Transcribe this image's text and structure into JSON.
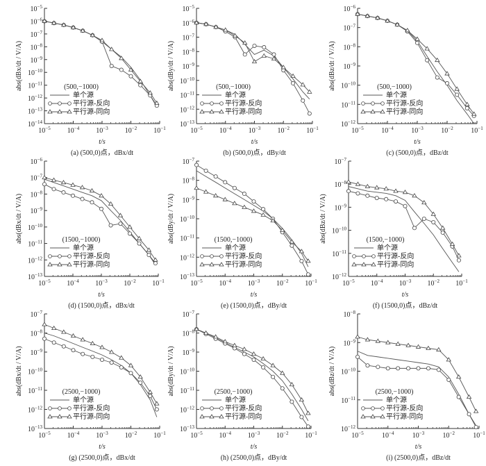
{
  "chart_data": {
    "type": "line",
    "x_log10": [
      -5,
      -4.67,
      -4.33,
      -4,
      -3.67,
      -3.33,
      -3,
      -2.67,
      -2.33,
      -2,
      -1.67,
      -1.33,
      -1.1
    ],
    "xlabel": "t/s",
    "xlim": [
      1e-05,
      0.1
    ],
    "xticks": [
      "10^-5",
      "10^-4",
      "10^-3",
      "10^-2",
      "10^-1"
    ],
    "series_names": [
      "单个源",
      "平行源-反向",
      "平行源-同向"
    ],
    "y_scale": "log",
    "panels": [
      {
        "id": "a",
        "caption": "(a) (500,0)点，dBx/dt",
        "ylabel": "abs(dBx/dt / V/A)",
        "legend_title": "(500,−1000)",
        "ylim_log10": [
          -14,
          -5
        ],
        "series": [
          {
            "name": "单个源",
            "marker": "none",
            "y_log10": [
              -6,
              -6.15,
              -6.3,
              -6.5,
              -6.75,
              -7.1,
              -7.6,
              -8.2,
              -8.8,
              -9.6,
              -10.6,
              -11.8,
              -12.7
            ]
          },
          {
            "name": "平行源-反向",
            "marker": "circle",
            "y_log10": [
              -6,
              -6.15,
              -6.3,
              -6.5,
              -6.75,
              -7.1,
              -7.6,
              -9.5,
              -9.8,
              -10.3,
              -11,
              -11.8,
              -12.6
            ]
          },
          {
            "name": "平行源-同向",
            "marker": "triangle",
            "y_log10": [
              -6,
              -6.15,
              -6.3,
              -6.5,
              -6.75,
              -7.1,
              -7.5,
              -8.2,
              -8.9,
              -9.8,
              -10.7,
              -11.6,
              -12.4
            ]
          }
        ]
      },
      {
        "id": "b",
        "caption": "(b) (500,0)点，dBy/dt",
        "ylabel": "abs(dBy/dt / V/A)",
        "legend_title": "(500,−1000)",
        "ylim_log10": [
          -13,
          -5
        ],
        "series": [
          {
            "name": "单个源",
            "marker": "none",
            "y_log10": [
              -6,
              -6.1,
              -6.3,
              -6.5,
              -6.8,
              -7.5,
              -8.2,
              -7.9,
              -8.3,
              -9.1,
              -9.9,
              -10.8,
              -11.3
            ]
          },
          {
            "name": "平行源-反向",
            "marker": "circle",
            "y_log10": [
              -6,
              -6.1,
              -6.3,
              -6.6,
              -7,
              -8.2,
              -7.6,
              -7.7,
              -8.2,
              -9.3,
              -10.2,
              -11.4,
              -12.3
            ]
          },
          {
            "name": "平行源-同向",
            "marker": "triangle",
            "y_log10": [
              -6,
              -6.1,
              -6.3,
              -6.5,
              -6.9,
              -7.4,
              -8.7,
              -8.3,
              -8.5,
              -9.1,
              -9.7,
              -10.3,
              -10.8
            ]
          }
        ]
      },
      {
        "id": "c",
        "caption": "(c) (500,0)点，dBz/dt",
        "ylabel": "abs(dBz/dt / V/A)",
        "legend_title": "(500,−1000)",
        "ylim_log10": [
          -12,
          -6
        ],
        "series": [
          {
            "name": "单个源",
            "marker": "none",
            "y_log10": [
              -6.3,
              -6.4,
              -6.5,
              -6.65,
              -6.85,
              -7.15,
              -7.7,
              -8.5,
              -9.3,
              -10,
              -10.8,
              -11.5,
              -12
            ]
          },
          {
            "name": "平行源-反向",
            "marker": "circle",
            "y_log10": [
              -6.3,
              -6.4,
              -6.5,
              -6.65,
              -6.85,
              -7.2,
              -7.8,
              -8.7,
              -9.6,
              -9.9,
              -10.5,
              -11.2,
              -11.6
            ]
          },
          {
            "name": "平行源-同向",
            "marker": "triangle",
            "y_log10": [
              -6.3,
              -6.4,
              -6.5,
              -6.65,
              -6.85,
              -7.15,
              -7.6,
              -8.1,
              -8.7,
              -9.4,
              -10.2,
              -11,
              -11.5
            ]
          }
        ]
      },
      {
        "id": "d",
        "caption": "(d) (1500,0)点，dBx/dt",
        "ylabel": "abs(dBx/dt / V/A)",
        "legend_title": "(1500,−1000)",
        "ylim_log10": [
          -13,
          -6
        ],
        "series": [
          {
            "name": "单个源",
            "marker": "none",
            "y_log10": [
              -7.1,
              -7.3,
              -7.5,
              -7.7,
              -7.9,
              -8.1,
              -8.4,
              -9,
              -9.6,
              -10.3,
              -11,
              -11.7,
              -12.3
            ]
          },
          {
            "name": "平行源-反向",
            "marker": "circle",
            "y_log10": [
              -7.4,
              -7.7,
              -7.9,
              -8.1,
              -8.3,
              -8.5,
              -8.9,
              -9.9,
              -9.8,
              -10.4,
              -11,
              -11.7,
              -12.2
            ]
          },
          {
            "name": "平行源-同向",
            "marker": "triangle",
            "y_log10": [
              -7,
              -7.15,
              -7.3,
              -7.45,
              -7.6,
              -7.8,
              -8.1,
              -8.6,
              -9.3,
              -10,
              -10.7,
              -11.4,
              -12
            ]
          }
        ]
      },
      {
        "id": "e",
        "caption": "(e) (1500,0)点，dBy/dt",
        "ylabel": "abs(dBy/dt / V/A)",
        "legend_title": "(1500,−1000)",
        "ylim_log10": [
          -13,
          -7
        ],
        "series": [
          {
            "name": "单个源",
            "marker": "none",
            "y_log10": [
              -7.5,
              -7.8,
              -8.1,
              -8.4,
              -8.7,
              -9,
              -9.3,
              -9.6,
              -10,
              -10.5,
              -11.1,
              -11.8,
              -12.5
            ]
          },
          {
            "name": "平行源-反向",
            "marker": "circle",
            "y_log10": [
              -7.2,
              -7.5,
              -7.8,
              -8.1,
              -8.4,
              -8.7,
              -9.1,
              -9.5,
              -10,
              -10.7,
              -11.4,
              -12.2,
              -12.9
            ]
          },
          {
            "name": "平行源-同向",
            "marker": "triangle",
            "y_log10": [
              -8.4,
              -8.6,
              -8.8,
              -9,
              -9.2,
              -9.4,
              -9.6,
              -9.8,
              -10.1,
              -10.6,
              -11.2,
              -11.7,
              -12.2
            ]
          }
        ]
      },
      {
        "id": "f",
        "caption": "(f) (1500,0)点，dBz/dt",
        "ylabel": "abs(dBz/dt / V/A)",
        "legend_title": "(1500,−1000)",
        "ylim_log10": [
          -12,
          -7
        ],
        "series": [
          {
            "name": "单个源",
            "marker": "none",
            "y_log10": [
              -8.1,
              -8.2,
              -8.3,
              -8.35,
              -8.4,
              -8.5,
              -8.7,
              -9.2,
              -9.7,
              -10.2,
              -10.8,
              -11.4,
              -11.8
            ]
          },
          {
            "name": "平行源-反向",
            "marker": "circle",
            "y_log10": [
              -8.3,
              -8.4,
              -8.5,
              -8.6,
              -8.65,
              -8.75,
              -8.95,
              -9.9,
              -9.5,
              -9.65,
              -10.1,
              -10.7,
              -11.3
            ]
          },
          {
            "name": "平行源-同向",
            "marker": "triangle",
            "y_log10": [
              -7.9,
              -8,
              -8.1,
              -8.15,
              -8.2,
              -8.3,
              -8.35,
              -8.5,
              -8.8,
              -9.3,
              -9.9,
              -10.6,
              -11.1
            ]
          }
        ]
      },
      {
        "id": "g",
        "caption": "(g) (2500,0)点，dBx/dt",
        "ylabel": "abs(dBx/dt / V/A)",
        "legend_title": "(2500,−1000)",
        "ylim_log10": [
          -13,
          -7
        ],
        "series": [
          {
            "name": "单个源",
            "marker": "none",
            "y_log10": [
              -8,
              -8.15,
              -8.35,
              -8.55,
              -8.75,
              -8.95,
              -9.15,
              -9.4,
              -9.7,
              -10.1,
              -10.7,
              -11.5,
              -12.4
            ]
          },
          {
            "name": "平行源-反向",
            "marker": "circle",
            "y_log10": [
              -8.3,
              -8.5,
              -8.7,
              -8.9,
              -9.1,
              -9.25,
              -9.4,
              -9.55,
              -9.8,
              -10.1,
              -10.6,
              -11.3,
              -12
            ]
          },
          {
            "name": "平行源-同向",
            "marker": "triangle",
            "y_log10": [
              -7.55,
              -7.75,
              -7.95,
              -8.15,
              -8.35,
              -8.55,
              -8.75,
              -9,
              -9.3,
              -9.7,
              -10.3,
              -11.1,
              -11.7
            ]
          }
        ]
      },
      {
        "id": "h",
        "caption": "(h) (2500,0)点，dBy/dt",
        "ylabel": "abs(dBy/dt / V/A)",
        "legend_title": "(2500,−1000)",
        "ylim_log10": [
          -13,
          -7
        ],
        "series": [
          {
            "name": "单个源",
            "marker": "none",
            "y_log10": [
              -7.8,
              -8,
              -8.25,
              -8.5,
              -8.75,
              -9,
              -9.25,
              -9.6,
              -10,
              -10.5,
              -11.2,
              -12,
              -12.6
            ]
          },
          {
            "name": "平行源-反向",
            "marker": "circle",
            "y_log10": [
              -7.8,
              -8.05,
              -8.3,
              -8.55,
              -8.8,
              -9.1,
              -9.4,
              -9.8,
              -10.3,
              -10.9,
              -11.6,
              -12.4,
              -12.9
            ]
          },
          {
            "name": "平行源-同向",
            "marker": "triangle",
            "y_log10": [
              -7.8,
              -8,
              -8.2,
              -8.45,
              -8.65,
              -8.85,
              -9.1,
              -9.35,
              -9.7,
              -10.1,
              -10.7,
              -11.5,
              -12.2
            ]
          }
        ]
      },
      {
        "id": "i",
        "caption": "(i) (2500,0)点，dBz/dt",
        "ylabel": "abs(dBz/dt / V/A)",
        "legend_title": "(2500,−1000)",
        "ylim_log10": [
          -12,
          -8
        ],
        "series": [
          {
            "name": "单个源",
            "marker": "none",
            "y_log10": [
              -9.3,
              -9.45,
              -9.5,
              -9.55,
              -9.6,
              -9.65,
              -9.7,
              -9.75,
              -9.85,
              -10.2,
              -10.8,
              -11.5,
              -11.9
            ]
          },
          {
            "name": "平行源-反向",
            "marker": "circle",
            "y_log10": [
              -9.5,
              -9.8,
              -9.85,
              -9.9,
              -9.9,
              -9.9,
              -9.9,
              -9.9,
              -9.95,
              -10.3,
              -10.9,
              -11.5,
              -11.95
            ]
          },
          {
            "name": "平行源-同向",
            "marker": "triangle",
            "y_log10": [
              -8.8,
              -8.9,
              -8.95,
              -9,
              -9.05,
              -9.1,
              -9.15,
              -9.2,
              -9.25,
              -9.6,
              -10.2,
              -10.9,
              -11.4
            ]
          }
        ]
      }
    ]
  }
}
